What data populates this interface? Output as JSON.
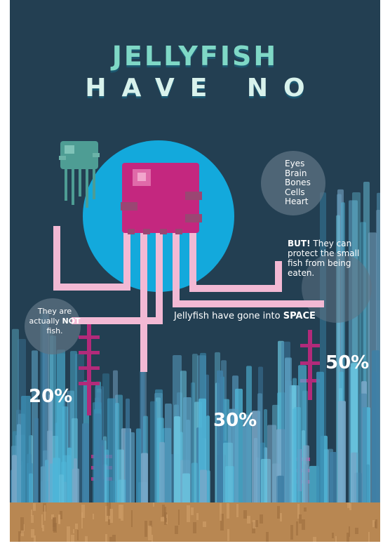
{
  "title": {
    "line1": "JELLYFISH",
    "line2": "HAVE NO"
  },
  "have_no_items": [
    "Eyes",
    "Brain",
    "Bones",
    "Cells",
    "Heart"
  ],
  "facts": {
    "but_lead": "BUT!",
    "but_text": " They can protect the small fish from being eaten.",
    "space_text": "Jellyfish have gone into ",
    "space_emph": "SPACE",
    "notfish_pre": "They are actually ",
    "notfish_emph": "NOT",
    "notfish_post": " fish."
  },
  "percentages": {
    "left": "20%",
    "middle": "30%",
    "right": "50%"
  },
  "colors": {
    "background": "#233f52",
    "sun_circle": "#13a9dc",
    "jellyfish_body": "#c4277f",
    "tentacles": "#f2b9d4",
    "coral": "#b22a7a",
    "sand": "#b88752",
    "bars": "#4fb6d8"
  }
}
